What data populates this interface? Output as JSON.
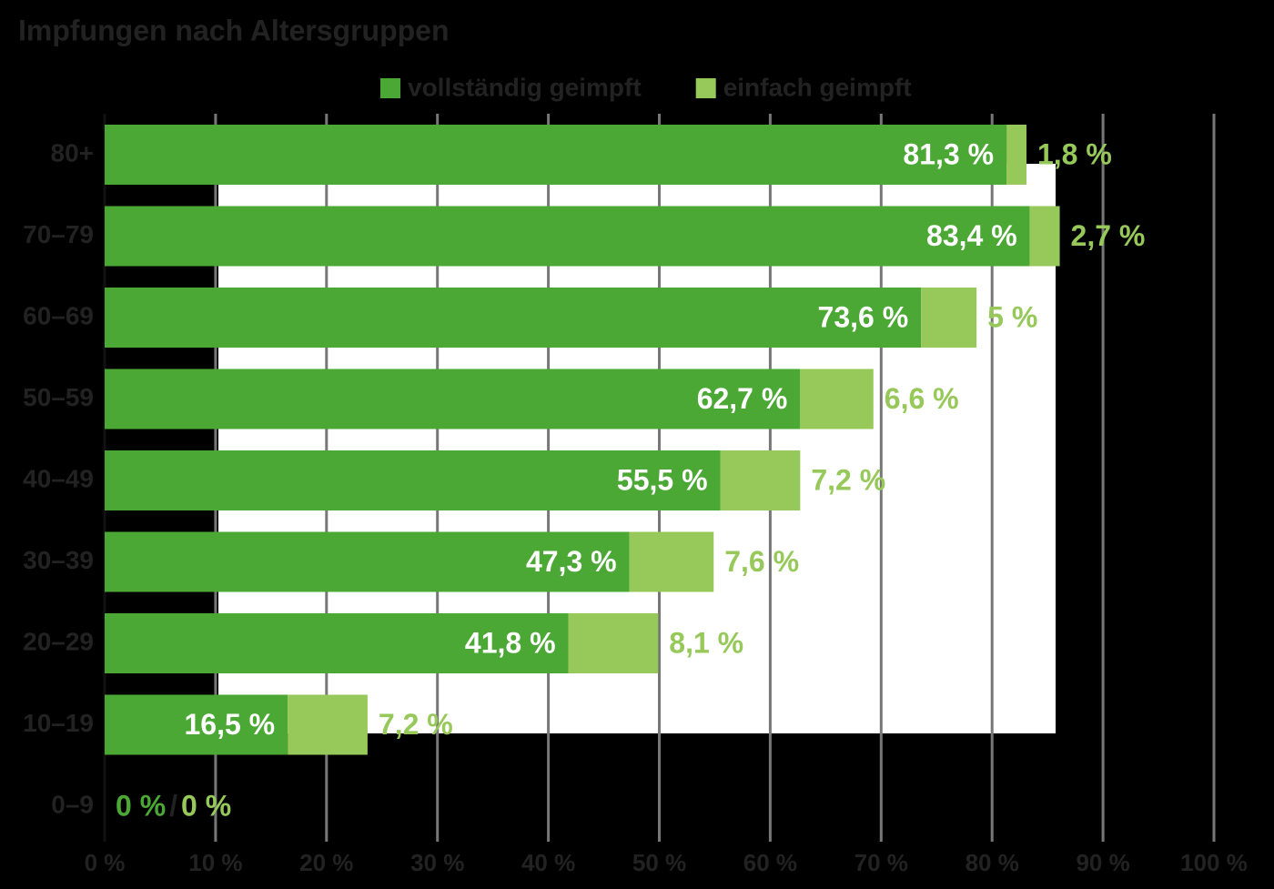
{
  "chart_data": {
    "type": "stacked-bar-horizontal",
    "title": "Impfungen nach Altersgruppen",
    "categories": [
      "80+",
      "70–79",
      "60–69",
      "50–59",
      "40–49",
      "30–39",
      "20–29",
      "10–19",
      "0–9"
    ],
    "series": [
      {
        "name": "vollständig geimpft",
        "color": "#4ba835",
        "values": [
          81.3,
          83.4,
          73.6,
          62.7,
          55.5,
          47.3,
          41.8,
          16.5,
          0
        ],
        "value_labels": [
          "81,3 %",
          "83,4 %",
          "73,6 %",
          "62,7 %",
          "55,5 %",
          "47,3 %",
          "41,8 %",
          "16,5 %",
          "0 %"
        ]
      },
      {
        "name": "einfach geimpft",
        "color": "#96c85a",
        "values": [
          1.8,
          2.7,
          5,
          6.6,
          7.2,
          7.6,
          8.1,
          7.2,
          0
        ],
        "value_labels": [
          "1,8 %",
          "2,7 %",
          "5 %",
          "6,6 %",
          "7,2 %",
          "7,6 %",
          "8,1 %",
          "7,2 %",
          "0 %"
        ]
      }
    ],
    "separator": "/",
    "xlim": [
      0,
      100
    ],
    "xticks": [
      {
        "value": 0,
        "label": "0 %"
      },
      {
        "value": 10,
        "label": "10 %"
      },
      {
        "value": 20,
        "label": "20 %"
      },
      {
        "value": 30,
        "label": "30 %"
      },
      {
        "value": 40,
        "label": "40 %"
      },
      {
        "value": 50,
        "label": "50 %"
      },
      {
        "value": 60,
        "label": "60 %"
      },
      {
        "value": 70,
        "label": "70 %"
      },
      {
        "value": 80,
        "label": "80 %"
      },
      {
        "value": 90,
        "label": "90 %"
      },
      {
        "value": 100,
        "label": "100 %"
      }
    ],
    "grid": true
  }
}
